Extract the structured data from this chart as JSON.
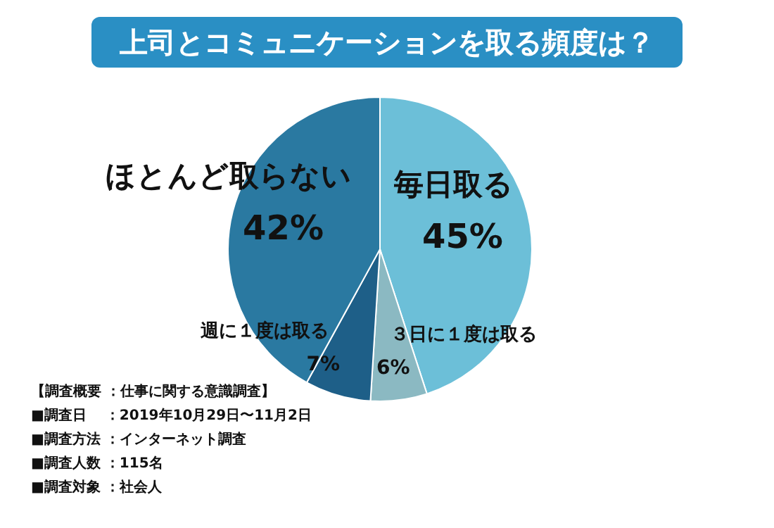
{
  "chart_data": {
    "type": "pie",
    "title": "上司とコミュニケーションを取る頻度は？",
    "categories": [
      "毎日取る",
      "３日に１度は取る",
      "週に１度は取る",
      "ほとんど取らない"
    ],
    "values": [
      45,
      6,
      7,
      42
    ],
    "value_labels": [
      "45%",
      "6%",
      "7%",
      "42%"
    ],
    "colors": [
      "#6cbfd8",
      "#8bb9c2",
      "#1e5f88",
      "#2a79a1"
    ],
    "legend": false,
    "annotations": [
      "【調査概要 ：仕事に関する意識調査】",
      "■調査日　 ：2019年10月29日〜11月2日",
      "■調査方法 ：インターネット調査",
      "■調査人数 ：115名",
      "■調査対象 ：社会人"
    ]
  }
}
